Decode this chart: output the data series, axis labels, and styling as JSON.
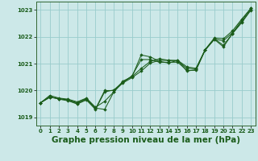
{
  "bg_color": "#cce8e8",
  "grid_color": "#99cccc",
  "line_color": "#1a5c1a",
  "marker_color": "#1a5c1a",
  "xlabel": "Graphe pression niveau de la mer (hPa)",
  "xlabel_fontsize": 7.5,
  "xlim": [
    -0.5,
    23.5
  ],
  "ylim": [
    1018.7,
    1023.3
  ],
  "yticks": [
    1019,
    1020,
    1021,
    1022,
    1023
  ],
  "xticks": [
    0,
    1,
    2,
    3,
    4,
    5,
    6,
    7,
    8,
    9,
    10,
    11,
    12,
    13,
    14,
    15,
    16,
    17,
    18,
    19,
    20,
    21,
    22,
    23
  ],
  "series": [
    [
      1019.55,
      1019.75,
      1019.7,
      1019.65,
      1019.55,
      1019.7,
      1019.35,
      1019.3,
      1019.95,
      1020.3,
      1020.55,
      1021.15,
      1021.15,
      1021.05,
      1021.05,
      1021.05,
      1020.75,
      1020.75,
      1021.5,
      1021.9,
      1021.85,
      1022.15,
      1022.6,
      1023.05
    ],
    [
      1019.55,
      1019.75,
      1019.7,
      1019.65,
      1019.52,
      1019.68,
      1019.32,
      1020.0,
      1020.0,
      1020.28,
      1020.48,
      1020.72,
      1021.02,
      1021.12,
      1021.12,
      1021.1,
      1020.82,
      1020.82,
      1021.5,
      1021.9,
      1021.62,
      1022.12,
      1022.55,
      1023.0
    ],
    [
      1019.55,
      1019.82,
      1019.72,
      1019.68,
      1019.58,
      1019.72,
      1019.38,
      1019.6,
      1019.95,
      1020.35,
      1020.52,
      1021.32,
      1021.25,
      1021.08,
      1021.02,
      1021.12,
      1020.72,
      1020.78,
      1021.52,
      1021.95,
      1021.92,
      1022.22,
      1022.65,
      1023.05
    ],
    [
      1019.55,
      1019.78,
      1019.68,
      1019.62,
      1019.5,
      1019.65,
      1019.3,
      1019.95,
      1020.02,
      1020.32,
      1020.52,
      1020.82,
      1021.08,
      1021.18,
      1021.12,
      1021.12,
      1020.88,
      1020.82,
      1021.52,
      1021.92,
      1021.68,
      1022.12,
      1022.52,
      1022.98
    ]
  ]
}
